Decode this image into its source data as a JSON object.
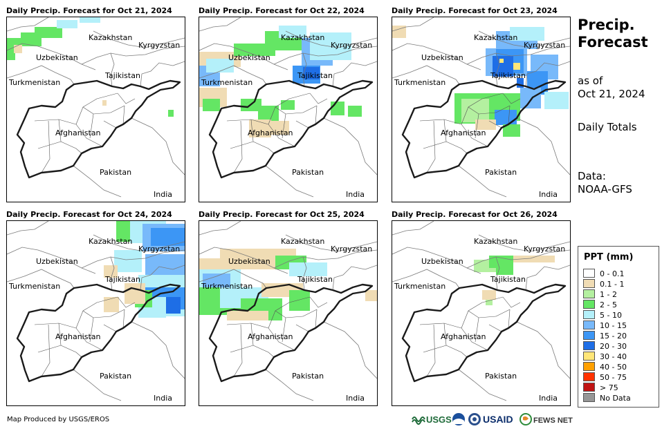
{
  "panels": [
    {
      "title": "Daily Precip. Forecast for Oct 21, 2024"
    },
    {
      "title": "Daily Precip. Forecast for Oct 22, 2024"
    },
    {
      "title": "Daily Precip. Forecast for Oct 23, 2024"
    },
    {
      "title": "Daily Precip. Forecast for Oct 24, 2024"
    },
    {
      "title": "Daily Precip. Forecast for Oct 25, 2024"
    },
    {
      "title": "Daily Precip. Forecast for Oct 26, 2024"
    }
  ],
  "countries": {
    "kazakhstan": "Kazakhstan",
    "kyrgyzstan": "Kyrgyzstan",
    "uzbekistan": "Uzbekistan",
    "tajikistan": "Tajikistan",
    "turkmenistan": "Turkmenistan",
    "afghanistan": "Afghanistan",
    "pakistan": "Pakistan",
    "india": "India"
  },
  "sidebar": {
    "title_line1": "Precip.",
    "title_line2": "Forecast",
    "asof_line1": "as of",
    "asof_line2": "Oct 21, 2024",
    "totals": "Daily Totals",
    "data_line1": "Data:",
    "data_line2": "NOAA-GFS"
  },
  "legend": {
    "title": "PPT (mm)",
    "items": [
      {
        "label": "0 - 0.1",
        "color": "#ffffff"
      },
      {
        "label": "0.1 - 1",
        "color": "#f0dcb4"
      },
      {
        "label": "1 - 2",
        "color": "#b4f0a0"
      },
      {
        "label": "2 - 5",
        "color": "#64e664"
      },
      {
        "label": "5 - 10",
        "color": "#b4f0fa"
      },
      {
        "label": "10 - 15",
        "color": "#78b9fa"
      },
      {
        "label": "15 - 20",
        "color": "#3c96f5"
      },
      {
        "label": "20 - 30",
        "color": "#1e6ee6"
      },
      {
        "label": "30 - 40",
        "color": "#ffe678"
      },
      {
        "label": "40 - 50",
        "color": "#ffa000"
      },
      {
        "label": "50 - 75",
        "color": "#ff3200"
      },
      {
        "label": "> 75",
        "color": "#c01414"
      },
      {
        "label": "No Data",
        "color": "#969696"
      }
    ]
  },
  "footer": "Map Produced by USGS/EROS",
  "logos": {
    "usgs": "USGS",
    "usaid": "USAID",
    "fews": "FEWS NET"
  }
}
